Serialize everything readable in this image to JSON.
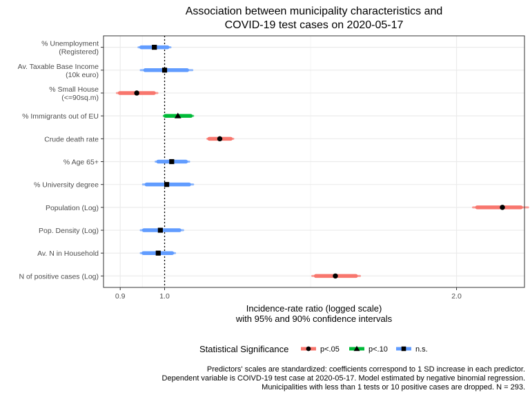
{
  "chart_data": {
    "type": "scatter",
    "title": "Association between municipality characteristics and\nCOVID-19 test cases on 2020-05-17",
    "xlabel": "Incidence-rate ratio (logged scale)\nwith 95% and 90% confidence intervals",
    "ylabel": "",
    "x_scale": "log",
    "xlim": [
      0.865,
      2.35
    ],
    "x_ticks": [
      {
        "value": 0.9,
        "label": "0.9"
      },
      {
        "value": 1.0,
        "label": "1.0"
      },
      {
        "value": 2.0,
        "label": "2.0"
      }
    ],
    "reference_line": 1.0,
    "grid": true,
    "categories": [
      "% Unemployment\n(Registered)",
      "Av. Taxable Base Income\n(10k euro)",
      "% Small House\n(<=90sq.m)",
      "% Immigrants out of EU",
      "Crude death rate",
      "% Age 65+",
      "% University degree",
      "Population (Log)",
      "Pop. Density (Log)",
      "Av. N in Household",
      "N of positive cases (Log)"
    ],
    "points": [
      {
        "estimate": 0.976,
        "ci95": [
          0.94,
          1.014
        ],
        "ci90": [
          0.946,
          1.007
        ],
        "group": "n.s."
      },
      {
        "estimate": 1.0,
        "ci95": [
          0.945,
          1.068
        ],
        "ci90": [
          0.955,
          1.055
        ],
        "group": "n.s."
      },
      {
        "estimate": 0.936,
        "ci95": [
          0.893,
          0.983
        ],
        "ci90": [
          0.899,
          0.975
        ],
        "group": "p<.05"
      },
      {
        "estimate": 1.032,
        "ci95": [
          0.998,
          1.07
        ],
        "ci90": [
          1.002,
          1.064
        ],
        "group": "p<.10"
      },
      {
        "estimate": 1.14,
        "ci95": [
          1.107,
          1.177
        ],
        "ci90": [
          1.112,
          1.17
        ],
        "group": "p<.05"
      },
      {
        "estimate": 1.017,
        "ci95": [
          0.979,
          1.06
        ],
        "ci90": [
          0.985,
          1.052
        ],
        "group": "n.s."
      },
      {
        "estimate": 1.005,
        "ci95": [
          0.95,
          1.07
        ],
        "ci90": [
          0.958,
          1.06
        ],
        "group": "n.s."
      },
      {
        "estimate": 2.23,
        "ci95": [
          2.08,
          2.37
        ],
        "ci90": [
          2.1,
          2.33
        ],
        "group": "p<.05"
      },
      {
        "estimate": 0.99,
        "ci95": [
          0.945,
          1.045
        ],
        "ci90": [
          0.952,
          1.036
        ],
        "group": "n.s."
      },
      {
        "estimate": 0.985,
        "ci95": [
          0.945,
          1.025
        ],
        "ci90": [
          0.951,
          1.018
        ],
        "group": "n.s."
      },
      {
        "estimate": 1.5,
        "ci95": [
          1.42,
          1.59
        ],
        "ci90": [
          1.432,
          1.575
        ],
        "group": "p<.05"
      }
    ],
    "legend": {
      "title": "Statistical Significance",
      "position": "bottom",
      "items": [
        {
          "label": "p<.05",
          "color": "#F8766D",
          "shape": "circle"
        },
        {
          "label": "p<.10",
          "color": "#00BA38",
          "shape": "triangle"
        },
        {
          "label": "n.s.",
          "color": "#619CFF",
          "shape": "square"
        }
      ]
    },
    "caption": "Predictors' scales are standardized: coefficients correspond to 1 SD increase in each predictor.\nDependent variable is COIVD-19 test case at 2020-05-17. Model estimated by negative binomial regression.\nMunicipalities with less than 1 tests or 10 positive cases are dropped. N = 293."
  }
}
